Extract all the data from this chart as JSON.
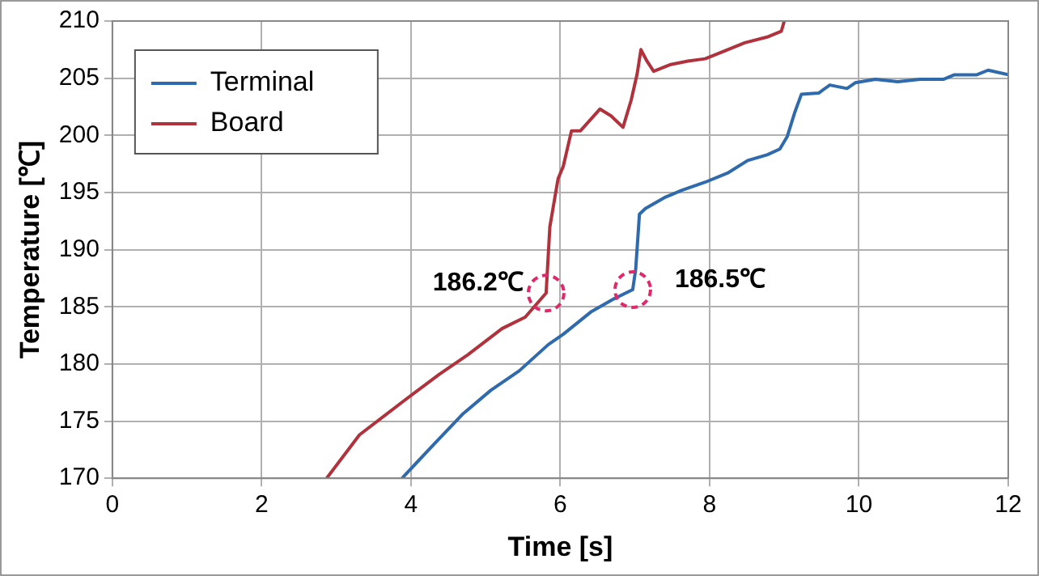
{
  "chart_data": {
    "type": "line",
    "xlabel": "Time [s]",
    "ylabel": "Temperature [℃]",
    "xlim": [
      0,
      12
    ],
    "xticks": [
      0,
      2,
      4,
      6,
      8,
      10,
      12
    ],
    "ylim": [
      170,
      210
    ],
    "yticks": [
      170,
      175,
      180,
      185,
      190,
      195,
      200,
      205,
      210
    ],
    "grid": true,
    "legend": "top left",
    "marker": "none",
    "line_style": "solid",
    "annotations": [
      {
        "text": "186.2℃",
        "x": 5.81,
        "y": 186.2
      },
      {
        "text": "186.5℃",
        "x": 6.97,
        "y": 186.5
      }
    ],
    "series": [
      {
        "name": "Terminal",
        "color": "#2e6aac",
        "x": [
          3.88,
          4.31,
          4.69,
          5.07,
          5.45,
          5.84,
          6.04,
          6.42,
          6.72,
          6.97,
          7.01,
          7.06,
          7.14,
          7.41,
          7.63,
          7.94,
          8.24,
          8.51,
          8.77,
          8.94,
          9.04,
          9.14,
          9.23,
          9.46,
          9.61,
          9.84,
          9.95,
          10.22,
          10.52,
          10.82,
          11.13,
          11.28,
          11.58,
          11.73,
          12
        ],
        "values": [
          170,
          173,
          175.6,
          177.7,
          179.4,
          181.7,
          182.6,
          184.6,
          185.7,
          186.5,
          188.3,
          193.1,
          193.6,
          194.6,
          195.2,
          195.9,
          196.7,
          197.8,
          198.3,
          198.8,
          199.9,
          202,
          203.6,
          203.7,
          204.4,
          204.1,
          204.6,
          204.9,
          204.7,
          204.9,
          204.9,
          205.3,
          205.3,
          205.7,
          205.3
        ]
      },
      {
        "name": "Board",
        "color": "#b0323c",
        "x": [
          2.87,
          3.31,
          3.89,
          4.38,
          4.76,
          5.22,
          5.53,
          5.81,
          5.86,
          5.97,
          6.04,
          6.15,
          6.27,
          6.38,
          6.53,
          6.68,
          6.84,
          6.95,
          7.03,
          7.08,
          7.16,
          7.25,
          7.48,
          7.71,
          7.94,
          8.17,
          8.47,
          8.77,
          8.96,
          9.0
        ],
        "values": [
          170,
          173.8,
          176.7,
          179.1,
          180.8,
          183.1,
          184.1,
          186.2,
          192,
          196.2,
          197.3,
          200.4,
          200.4,
          201.2,
          202.3,
          201.7,
          200.7,
          203.1,
          205.4,
          207.5,
          206.5,
          205.6,
          206.2,
          206.5,
          206.7,
          207.3,
          208.1,
          208.6,
          209.1,
          210
        ]
      }
    ]
  }
}
